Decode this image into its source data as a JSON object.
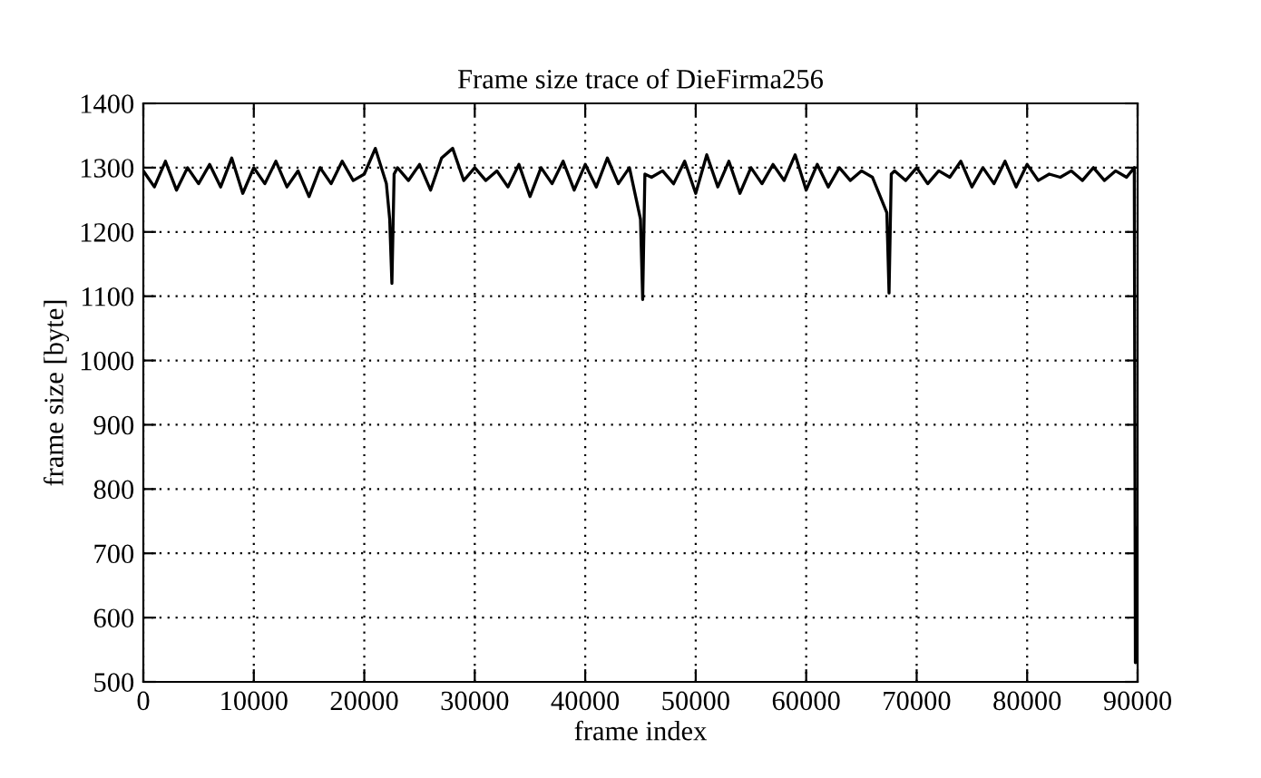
{
  "chart_data": {
    "type": "line",
    "title": "Frame size trace of DieFirma256",
    "xlabel": "frame index",
    "ylabel": "frame size [byte]",
    "x": [
      0,
      1000,
      2000,
      3000,
      4000,
      5000,
      6000,
      7000,
      8000,
      9000,
      10000,
      11000,
      12000,
      13000,
      14000,
      15000,
      16000,
      17000,
      18000,
      19000,
      20000,
      21000,
      22000,
      22300,
      22500,
      22700,
      23000,
      24000,
      25000,
      26000,
      27000,
      28000,
      29000,
      30000,
      31000,
      32000,
      33000,
      34000,
      35000,
      36000,
      37000,
      38000,
      39000,
      40000,
      41000,
      42000,
      43000,
      44000,
      45000,
      45200,
      45400,
      46000,
      47000,
      48000,
      49000,
      50000,
      51000,
      52000,
      53000,
      54000,
      55000,
      56000,
      57000,
      58000,
      59000,
      60000,
      61000,
      62000,
      63000,
      64000,
      65000,
      66000,
      67300,
      67500,
      67700,
      68000,
      69000,
      70000,
      71000,
      72000,
      73000,
      74000,
      75000,
      76000,
      77000,
      78000,
      79000,
      80000,
      81000,
      82000,
      83000,
      84000,
      85000,
      86000,
      87000,
      88000,
      89000,
      89700,
      89800,
      89900,
      90000
    ],
    "series": [
      {
        "color": "#000000",
        "values": [
          1295,
          1270,
          1310,
          1265,
          1300,
          1275,
          1305,
          1270,
          1315,
          1260,
          1300,
          1275,
          1310,
          1270,
          1295,
          1255,
          1300,
          1275,
          1310,
          1280,
          1290,
          1330,
          1275,
          1220,
          1120,
          1290,
          1300,
          1280,
          1305,
          1265,
          1315,
          1330,
          1280,
          1300,
          1280,
          1295,
          1270,
          1305,
          1255,
          1300,
          1275,
          1310,
          1265,
          1305,
          1270,
          1315,
          1275,
          1300,
          1220,
          1095,
          1290,
          1285,
          1295,
          1275,
          1310,
          1260,
          1320,
          1270,
          1310,
          1260,
          1300,
          1275,
          1305,
          1280,
          1320,
          1265,
          1305,
          1270,
          1300,
          1280,
          1295,
          1285,
          1230,
          1105,
          1290,
          1295,
          1280,
          1300,
          1275,
          1295,
          1285,
          1310,
          1270,
          1300,
          1275,
          1310,
          1270,
          1305,
          1280,
          1290,
          1285,
          1295,
          1280,
          1300,
          1280,
          1295,
          1285,
          1300,
          530,
          740,
          540
        ]
      }
    ],
    "xlim": [
      0,
      90000
    ],
    "ylim": [
      500,
      1400
    ],
    "xticks": [
      0,
      10000,
      20000,
      30000,
      40000,
      50000,
      60000,
      70000,
      80000,
      90000
    ],
    "yticks": [
      500,
      600,
      700,
      800,
      900,
      1000,
      1100,
      1200,
      1300,
      1400
    ],
    "grid": true,
    "legend": false,
    "marker": "none",
    "line_style": "solid"
  }
}
